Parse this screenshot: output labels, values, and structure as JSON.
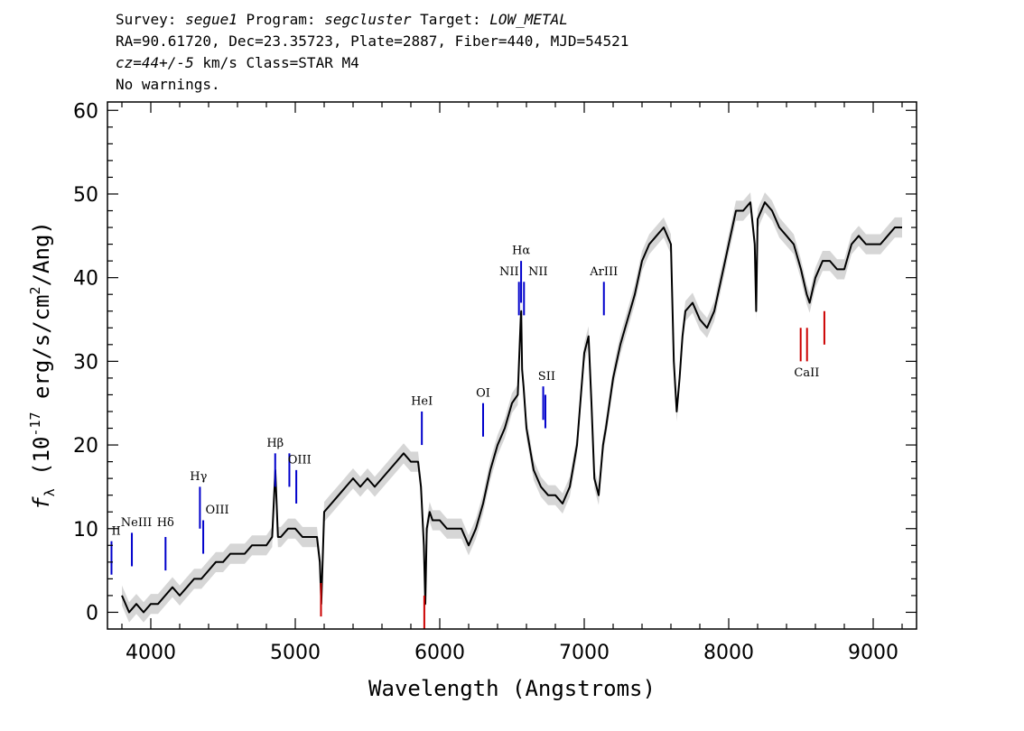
{
  "header": {
    "line1": {
      "survey_label": "Survey: ",
      "survey": "segue1",
      "program_label": " Program: ",
      "program": "segcluster",
      "target_label": " Target: ",
      "target": "LOW_METAL"
    },
    "line2": "RA=90.61720, Dec=23.35723, Plate=2887, Fiber=440, MJD=54521",
    "line3": {
      "cz": "cz=44+/-5",
      "rest": " km/s Class=STAR M4"
    },
    "line4": "No warnings."
  },
  "chart_data": {
    "type": "line",
    "title": "",
    "xlabel": "Wavelength (Angstroms)",
    "ylabel_prefix": "f",
    "ylabel_sub": "λ",
    "ylabel_mid": " (10",
    "ylabel_exp": "-17",
    "ylabel_rest": " erg/s/cm",
    "ylabel_exp2": "2",
    "ylabel_end": "/Ang)",
    "xlim": [
      3700,
      9300
    ],
    "ylim": [
      -2,
      61
    ],
    "x_ticks": [
      4000,
      5000,
      6000,
      7000,
      8000,
      9000
    ],
    "y_ticks": [
      0,
      10,
      20,
      30,
      40,
      50,
      60
    ],
    "series": [
      {
        "color": "#000000",
        "error_color": "#bbbbbb",
        "x": [
          3800,
          3850,
          3900,
          3950,
          4000,
          4050,
          4100,
          4150,
          4200,
          4250,
          4300,
          4350,
          4400,
          4450,
          4500,
          4550,
          4600,
          4650,
          4700,
          4750,
          4800,
          4840,
          4862,
          4880,
          4900,
          4950,
          5000,
          5050,
          5100,
          5150,
          5170,
          5180,
          5200,
          5250,
          5300,
          5350,
          5400,
          5450,
          5500,
          5550,
          5600,
          5650,
          5700,
          5750,
          5800,
          5850,
          5870,
          5890,
          5900,
          5910,
          5930,
          5950,
          6000,
          6050,
          6100,
          6150,
          6200,
          6250,
          6300,
          6350,
          6400,
          6450,
          6500,
          6540,
          6560,
          6564,
          6570,
          6580,
          6600,
          6650,
          6700,
          6750,
          6800,
          6850,
          6900,
          6950,
          7000,
          7030,
          7050,
          7070,
          7100,
          7130,
          7150,
          7200,
          7250,
          7300,
          7350,
          7400,
          7450,
          7500,
          7550,
          7600,
          7620,
          7640,
          7660,
          7680,
          7700,
          7750,
          7800,
          7850,
          7900,
          7950,
          8000,
          8050,
          8100,
          8150,
          8180,
          8190,
          8200,
          8250,
          8300,
          8350,
          8400,
          8450,
          8500,
          8540,
          8560,
          8600,
          8650,
          8700,
          8750,
          8800,
          8850,
          8900,
          8950,
          9000,
          9050,
          9100,
          9150,
          9200
        ],
        "y": [
          2,
          0,
          1,
          0,
          1,
          1,
          2,
          3,
          2,
          3,
          4,
          4,
          5,
          6,
          6,
          7,
          7,
          7,
          8,
          8,
          8,
          9,
          17,
          9,
          9,
          10,
          10,
          9,
          9,
          9,
          6,
          1,
          12,
          13,
          14,
          15,
          16,
          15,
          16,
          15,
          16,
          17,
          18,
          19,
          18,
          18,
          15,
          8,
          1,
          10,
          12,
          11,
          11,
          10,
          10,
          10,
          8,
          10,
          13,
          17,
          20,
          22,
          25,
          26,
          35,
          36,
          29,
          27,
          22,
          17,
          15,
          14,
          14,
          13,
          15,
          20,
          31,
          33,
          25,
          16,
          14,
          20,
          22,
          28,
          32,
          35,
          38,
          42,
          44,
          45,
          46,
          44,
          30,
          24,
          28,
          33,
          36,
          37,
          35,
          34,
          36,
          40,
          44,
          48,
          48,
          49,
          44,
          36,
          47,
          49,
          48,
          46,
          45,
          44,
          41,
          38,
          37,
          40,
          42,
          42,
          41,
          41,
          44,
          45,
          44,
          44,
          44,
          45,
          46,
          46
        ]
      }
    ],
    "lines": [
      {
        "label": "",
        "x": 3728,
        "y0": 4.5,
        "y1": 8.5,
        "color": "#0000cc"
      },
      {
        "label": "NeIII",
        "x": 3869,
        "y0": 5.5,
        "y1": 9.5,
        "color": "#0000cc"
      },
      {
        "label": "Hδ",
        "x": 4102,
        "y0": 5.0,
        "y1": 9.0,
        "color": "#0000cc"
      },
      {
        "label": "Hγ",
        "x": 4340,
        "y0": 10.0,
        "y1": 15.0,
        "color": "#0000cc"
      },
      {
        "label": "OIII",
        "x": 4363,
        "y0": 7.0,
        "y1": 11.0,
        "color": "#0000cc"
      },
      {
        "label": "Hβ",
        "x": 4861,
        "y0": 15.0,
        "y1": 19.0,
        "color": "#0000cc"
      },
      {
        "label": "",
        "x": 4959,
        "y0": 15.0,
        "y1": 19.0,
        "color": "#0000cc"
      },
      {
        "label": "OIII",
        "x": 5007,
        "y0": 13.0,
        "y1": 17.0,
        "color": "#0000cc"
      },
      {
        "label": "",
        "x": 5178,
        "y0": -0.5,
        "y1": 3.5,
        "color": "#cc0000"
      },
      {
        "label": "HeI",
        "x": 5876,
        "y0": 20.0,
        "y1": 24.0,
        "color": "#0000cc"
      },
      {
        "label": "",
        "x": 5893,
        "y0": -2.0,
        "y1": 2.0,
        "color": "#cc0000"
      },
      {
        "label": "OI",
        "x": 6300,
        "y0": 21.0,
        "y1": 25.0,
        "color": "#0000cc"
      },
      {
        "label": "",
        "x": 6548,
        "y0": 35.5,
        "y1": 39.5,
        "color": "#0000cc"
      },
      {
        "label": "Hα",
        "x": 6563,
        "y0": 37.0,
        "y1": 42.0,
        "color": "#0000cc"
      },
      {
        "label": "",
        "x": 6583,
        "y0": 35.5,
        "y1": 39.5,
        "color": "#0000cc"
      },
      {
        "label": "SII",
        "x": 6716,
        "y0": 23.0,
        "y1": 27.0,
        "color": "#0000cc"
      },
      {
        "label": "",
        "x": 6731,
        "y0": 22.0,
        "y1": 26.0,
        "color": "#0000cc"
      },
      {
        "label": "ArIII",
        "x": 7136,
        "y0": 35.5,
        "y1": 39.5,
        "color": "#0000cc"
      },
      {
        "label": "",
        "x": 8498,
        "y0": 30.0,
        "y1": 34.0,
        "color": "#cc0000"
      },
      {
        "label": "",
        "x": 8542,
        "y0": 30.0,
        "y1": 34.0,
        "color": "#cc0000"
      },
      {
        "label": "",
        "x": 8662,
        "y0": 32.0,
        "y1": 36.0,
        "color": "#cc0000"
      }
    ],
    "line_labels": [
      {
        "text": "II",
        "x": 3760,
        "y": 9.3
      },
      {
        "text": "NeIII",
        "x": 3900,
        "y": 10.3
      },
      {
        "text": "Hδ",
        "x": 4102,
        "y": 10.3
      },
      {
        "text": "Hγ",
        "x": 4330,
        "y": 15.8
      },
      {
        "text": "OIII",
        "x": 4460,
        "y": 11.8
      },
      {
        "text": "Hβ",
        "x": 4861,
        "y": 19.8
      },
      {
        "text": "OIII",
        "x": 5030,
        "y": 17.8
      },
      {
        "text": "HeI",
        "x": 5876,
        "y": 24.8
      },
      {
        "text": "OI",
        "x": 6300,
        "y": 25.8
      },
      {
        "text": "Hα",
        "x": 6563,
        "y": 42.8
      },
      {
        "text": "NII",
        "x": 6480,
        "y": 40.3
      },
      {
        "text": "NII",
        "x": 6680,
        "y": 40.3
      },
      {
        "text": "SII",
        "x": 6740,
        "y": 27.8
      },
      {
        "text": "ArIII",
        "x": 7136,
        "y": 40.3
      },
      {
        "text": "CaII",
        "x": 8540,
        "y": 28.2
      }
    ]
  }
}
